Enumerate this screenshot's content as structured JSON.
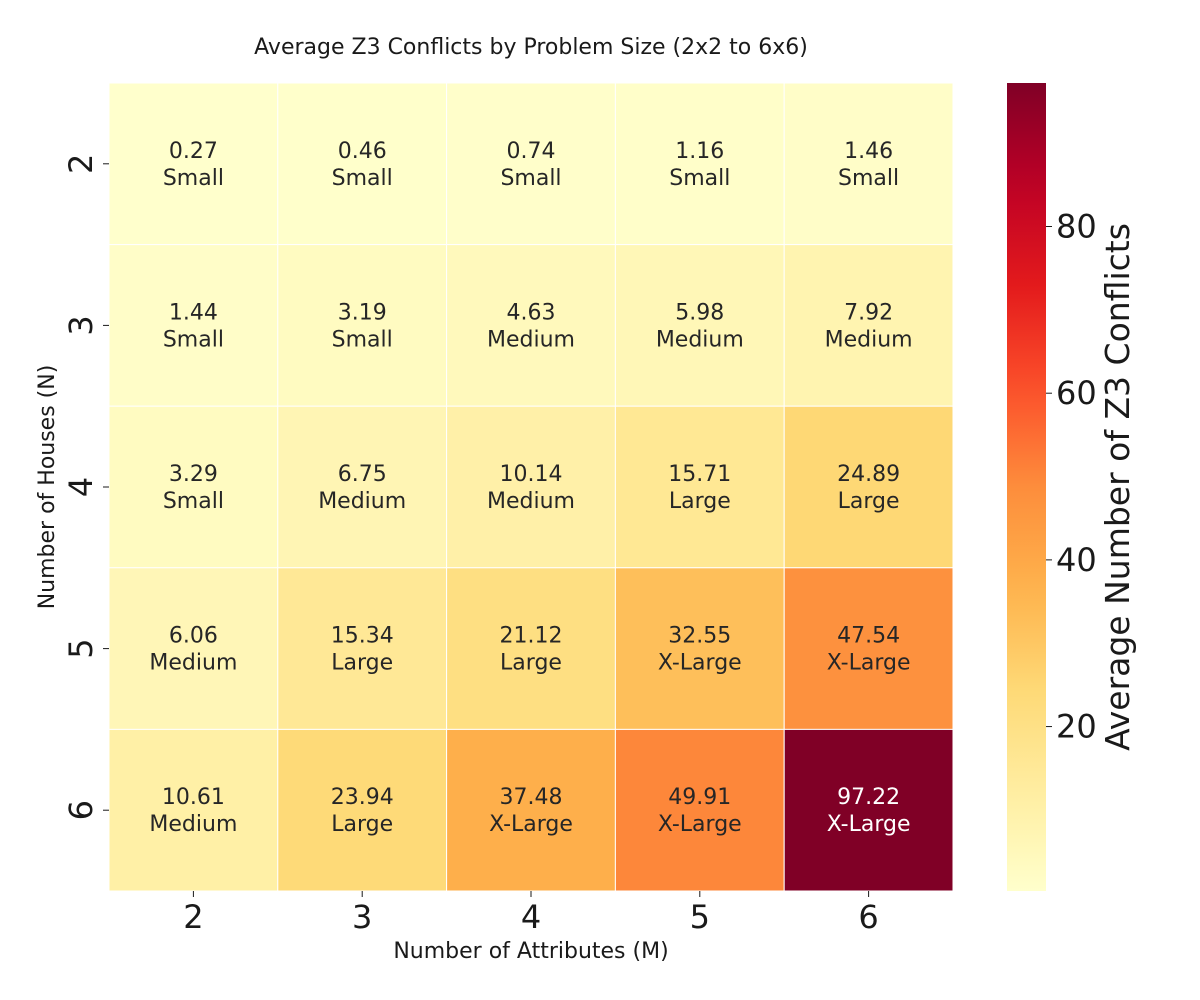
{
  "chart_data": {
    "type": "heatmap",
    "title": "Average Z3 Conflicts by Problem Size (2x2 to 6x6)",
    "xlabel": "Number of Attributes (M)",
    "ylabel": "Number of Houses (N)",
    "x_categories": [
      "2",
      "3",
      "4",
      "5",
      "6"
    ],
    "y_categories": [
      "2",
      "3",
      "4",
      "5",
      "6"
    ],
    "values": [
      [
        0.27,
        0.46,
        0.74,
        1.16,
        1.46
      ],
      [
        1.44,
        3.19,
        4.63,
        5.98,
        7.92
      ],
      [
        3.29,
        6.75,
        10.14,
        15.71,
        24.89
      ],
      [
        6.06,
        15.34,
        21.12,
        32.55,
        47.54
      ],
      [
        10.61,
        23.94,
        37.48,
        49.91,
        97.22
      ]
    ],
    "value_labels": [
      [
        "0.27",
        "0.46",
        "0.74",
        "1.16",
        "1.46"
      ],
      [
        "1.44",
        "3.19",
        "4.63",
        "5.98",
        "7.92"
      ],
      [
        "3.29",
        "6.75",
        "10.14",
        "15.71",
        "24.89"
      ],
      [
        "6.06",
        "15.34",
        "21.12",
        "32.55",
        "47.54"
      ],
      [
        "10.61",
        "23.94",
        "37.48",
        "49.91",
        "97.22"
      ]
    ],
    "category_labels": [
      [
        "Small",
        "Small",
        "Small",
        "Small",
        "Small"
      ],
      [
        "Small",
        "Small",
        "Medium",
        "Medium",
        "Medium"
      ],
      [
        "Small",
        "Medium",
        "Medium",
        "Large",
        "Large"
      ],
      [
        "Medium",
        "Large",
        "Large",
        "X-Large",
        "X-Large"
      ],
      [
        "Medium",
        "Large",
        "X-Large",
        "X-Large",
        "X-Large"
      ]
    ],
    "colorbar": {
      "label": "Average Number of Z3 Conflicts",
      "colormap": "YlOrRd",
      "vmin": 0.27,
      "vmax": 97.22,
      "ticks": [
        20,
        40,
        60,
        80
      ]
    },
    "grid": false,
    "legend": "colorbar-right"
  }
}
